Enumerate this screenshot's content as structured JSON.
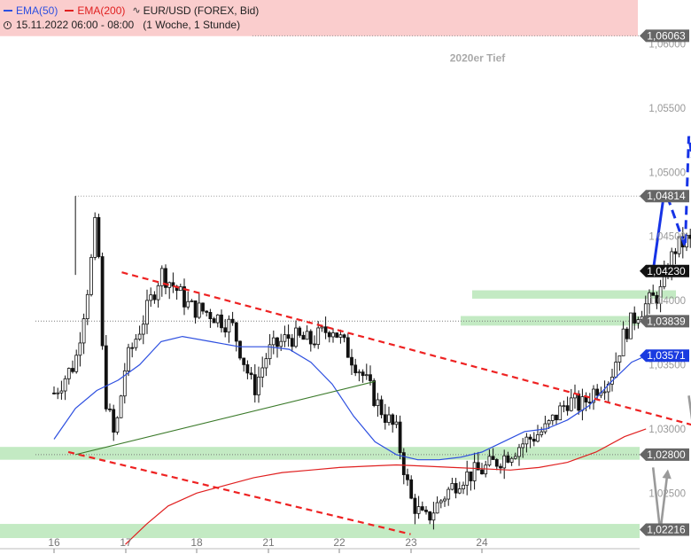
{
  "header": {
    "ema50_label": "EMA(50)",
    "ema200_label": "EMA(200)",
    "instrument": "EUR/USD (FOREX, Bid)",
    "time_range": "15.11.2022 06:00 - 08:00",
    "period": "(1 Woche, 1 Stunde)"
  },
  "colors": {
    "ema50": "#2d4fe0",
    "ema200": "#e02020",
    "candle": "#111111",
    "trend_red": "#ee2222",
    "trend_green": "#3b7a2a",
    "forecast_blue": "#1633e6",
    "forecast_gray": "#9a9a9a",
    "zone_green": "#b9e6b9",
    "resistance_zone": "#f9c4c4",
    "price_badge": "#666666",
    "current_badge": "#111111",
    "ema50_badge": "#1a3be0"
  },
  "chart_data": {
    "type": "candlestick",
    "title": "",
    "x_labels": [
      "16",
      "17",
      "18",
      "21",
      "22",
      "23",
      "24"
    ],
    "y_ticks": [
      "1,02500",
      "1,03000",
      "1,03500",
      "1,04000",
      "1,04500",
      "1,05000",
      "1,05500",
      "1,06000"
    ],
    "ylim": [
      1.0215,
      1.061
    ],
    "annotations": [
      {
        "text": "2020er Tief",
        "price": 1.0589
      }
    ],
    "price_markers": [
      {
        "label": "1,06063",
        "value": 1.06063,
        "style": "gray"
      },
      {
        "label": "1,04814",
        "value": 1.04814,
        "style": "gray"
      },
      {
        "label": "1,04230",
        "value": 1.0423,
        "style": "current"
      },
      {
        "label": "1,03839",
        "value": 1.03839,
        "style": "gray"
      },
      {
        "label": "1,03571",
        "value": 1.03571,
        "style": "ema50"
      },
      {
        "label": "1,02800",
        "value": 1.028,
        "style": "gray"
      },
      {
        "label": "1,02216",
        "value": 1.02216,
        "style": "gray"
      }
    ],
    "zones": [
      {
        "name": "resistance",
        "from": 1.0606,
        "to": 1.064,
        "color": "resistance"
      },
      {
        "name": "support-1,0405",
        "from": 1.04015,
        "to": 1.0408,
        "color": "green"
      },
      {
        "name": "support-1,0384",
        "from": 1.03805,
        "to": 1.0388,
        "color": "green"
      },
      {
        "name": "support-1,0280",
        "from": 1.0276,
        "to": 1.0286,
        "color": "green"
      },
      {
        "name": "support-1,0222",
        "from": 1.0215,
        "to": 1.0226,
        "color": "green"
      }
    ],
    "guides": [
      {
        "value": 1.04814,
        "from_session": 0.3
      }
    ],
    "candles_anchor": [
      [
        0,
        1.0328
      ],
      [
        0.3,
        1.0352
      ],
      [
        0.5,
        1.042
      ],
      [
        0.6,
        1.047
      ],
      [
        0.7,
        1.033
      ],
      [
        0.85,
        1.0292
      ],
      [
        1.0,
        1.035
      ],
      [
        1.3,
        1.0392
      ],
      [
        1.5,
        1.0422
      ],
      [
        1.7,
        1.041
      ],
      [
        1.9,
        1.0395
      ],
      [
        2.2,
        1.039
      ],
      [
        2.5,
        1.038
      ],
      [
        2.8,
        1.033
      ],
      [
        3.0,
        1.036
      ],
      [
        3.3,
        1.0372
      ],
      [
        3.6,
        1.0368
      ],
      [
        3.9,
        1.038
      ],
      [
        4.1,
        1.0362
      ],
      [
        4.3,
        1.0345
      ],
      [
        4.55,
        1.0318
      ],
      [
        4.8,
        1.0298
      ],
      [
        5.0,
        1.0245
      ],
      [
        5.2,
        1.0228
      ],
      [
        5.5,
        1.025
      ],
      [
        5.7,
        1.0262
      ],
      [
        6.0,
        1.0268
      ],
      [
        6.3,
        1.0278
      ],
      [
        6.6,
        1.029
      ],
      [
        6.9,
        1.03
      ],
      [
        7.2,
        1.0322
      ],
      [
        7.4,
        1.0318
      ],
      [
        7.6,
        1.0332
      ],
      [
        7.8,
        1.034
      ],
      [
        8.0,
        1.0375
      ],
      [
        8.2,
        1.0392
      ],
      [
        8.5,
        1.0406
      ],
      [
        8.7,
        1.044
      ],
      [
        8.9,
        1.0448
      ],
      [
        9.05,
        1.0428
      ]
    ],
    "ema50": [
      [
        0,
        1.0292
      ],
      [
        0.3,
        1.0316
      ],
      [
        0.6,
        1.033
      ],
      [
        0.9,
        1.0338
      ],
      [
        1.2,
        1.035
      ],
      [
        1.5,
        1.0368
      ],
      [
        1.8,
        1.0372
      ],
      [
        2.2,
        1.0368
      ],
      [
        2.6,
        1.0364
      ],
      [
        3.0,
        1.0364
      ],
      [
        3.3,
        1.0362
      ],
      [
        3.6,
        1.0352
      ],
      [
        3.9,
        1.0335
      ],
      [
        4.2,
        1.031
      ],
      [
        4.5,
        1.029
      ],
      [
        4.8,
        1.028
      ],
      [
        5.1,
        1.0276
      ],
      [
        5.4,
        1.0276
      ],
      [
        5.7,
        1.0278
      ],
      [
        6.0,
        1.0282
      ],
      [
        6.3,
        1.029
      ],
      [
        6.6,
        1.0298
      ],
      [
        6.9,
        1.03
      ],
      [
        7.2,
        1.0307
      ],
      [
        7.5,
        1.0318
      ],
      [
        7.8,
        1.0336
      ],
      [
        8.1,
        1.0352
      ],
      [
        8.3,
        1.0357
      ]
    ],
    "ema200": [
      [
        1.0,
        1.021
      ],
      [
        1.3,
        1.0226
      ],
      [
        1.6,
        1.024
      ],
      [
        2.0,
        1.025
      ],
      [
        2.4,
        1.0256
      ],
      [
        2.8,
        1.0262
      ],
      [
        3.2,
        1.0266
      ],
      [
        3.6,
        1.0268
      ],
      [
        4.0,
        1.027
      ],
      [
        4.4,
        1.0271
      ],
      [
        4.8,
        1.0272
      ],
      [
        5.2,
        1.0271
      ],
      [
        5.6,
        1.027
      ],
      [
        6.0,
        1.0269
      ],
      [
        6.4,
        1.0268
      ],
      [
        6.8,
        1.027
      ],
      [
        7.2,
        1.0274
      ],
      [
        7.6,
        1.0282
      ],
      [
        8.0,
        1.0294
      ],
      [
        8.3,
        1.03
      ]
    ],
    "trendlines": [
      {
        "name": "upper-red-dashed",
        "from": [
          0.95,
          1.0422
        ],
        "to": [
          9.7,
          1.0292
        ],
        "style": "red-dashed"
      },
      {
        "name": "lower-red-dashed",
        "from": [
          0.2,
          1.0282
        ],
        "to": [
          5.0,
          1.0218
        ],
        "style": "red-dashed"
      },
      {
        "name": "green-trendline",
        "from": [
          0.3,
          1.028
        ],
        "to": [
          4.5,
          1.0337
        ],
        "style": "green"
      }
    ],
    "forecast_arrows": [
      {
        "name": "blue-solid-up",
        "points": [
          [
            8.4,
            1.0423
          ],
          [
            8.55,
            1.0482
          ]
        ],
        "style": "blue-solid"
      },
      {
        "name": "blue-dashed-zigzag",
        "points": [
          [
            8.6,
            1.0481
          ],
          [
            8.85,
            1.0442
          ],
          [
            8.9,
            1.0528
          ],
          [
            9.1,
            1.046
          ],
          [
            9.35,
            1.0608
          ]
        ],
        "style": "blue-dashed"
      },
      {
        "name": "gray-upper",
        "points": [
          [
            8.9,
            1.0326
          ],
          [
            9.0,
            1.0286
          ],
          [
            9.1,
            1.0326
          ]
        ],
        "style": "gray"
      },
      {
        "name": "gray-lower",
        "points": [
          [
            8.4,
            1.027
          ],
          [
            8.5,
            1.022
          ],
          [
            8.6,
            1.0265
          ]
        ],
        "style": "gray"
      }
    ]
  }
}
